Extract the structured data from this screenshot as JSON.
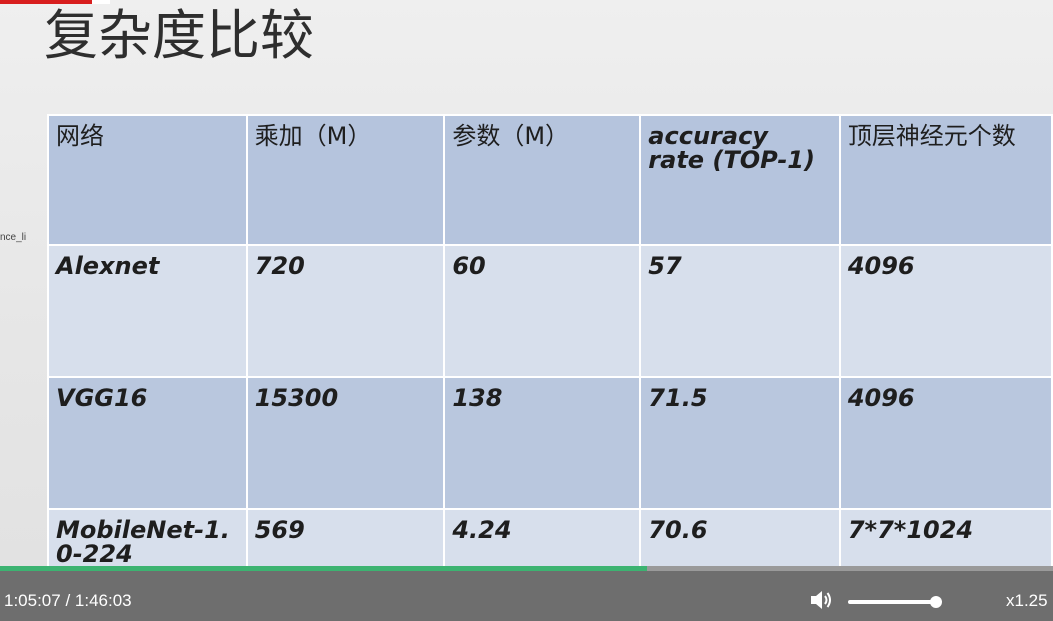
{
  "slide": {
    "title": "复杂度比较",
    "side_label": "nce_li",
    "table": {
      "headers": [
        "网络",
        "乘加（M）",
        "参数（M）",
        "accuracy rate (TOP-1)",
        "顶层神经元个数"
      ],
      "rows": [
        [
          "Alexnet",
          "720",
          "60",
          "57",
          "4096"
        ],
        [
          "VGG16",
          "15300",
          "138",
          "71.5",
          "4096"
        ],
        [
          "MobileNet-1.0-224",
          "569",
          "4.24",
          "70.6",
          "7*7*1024"
        ]
      ]
    }
  },
  "player": {
    "time_display": "1:05:07 / 1:46:03",
    "progress_fraction": 0.614,
    "volume_fraction": 0.93,
    "speed_label": "x1.25"
  },
  "colors": {
    "progress": "#3cb371",
    "header_cell": "#b5c4dd",
    "light_cell": "#d7dfec",
    "dark_cell": "#b9c7de",
    "title_red": "#d81e1e"
  }
}
